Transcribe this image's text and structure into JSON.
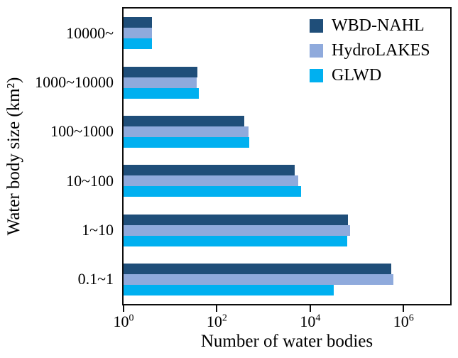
{
  "chart_data": {
    "type": "bar",
    "orientation": "horizontal",
    "x_scale": "log",
    "title": "",
    "xlabel": "Number of water bodies",
    "ylabel": "Water body size (km²)",
    "xlim": [
      1,
      10000000
    ],
    "grid": false,
    "x_ticks": {
      "base": 10,
      "exponents": [
        0,
        2,
        4,
        6
      ],
      "labels": [
        "10^0",
        "10^2",
        "10^4",
        "10^6"
      ]
    },
    "categories_top_to_bottom": [
      "10000~",
      "1000~10000",
      "100~1000",
      "10~100",
      "1~10",
      "0.1~1"
    ],
    "series": [
      {
        "name": "WBD-NAHL",
        "color": "#1F4E79",
        "values_top_to_bottom": [
          4,
          38,
          390,
          4600,
          64000,
          550000
        ]
      },
      {
        "name": "HydroLAKES",
        "color": "#8FAADC",
        "values_top_to_bottom": [
          4,
          37,
          470,
          5500,
          71000,
          600000
        ]
      },
      {
        "name": "GLWD",
        "color": "#00B0F0",
        "values_top_to_bottom": [
          4,
          41,
          500,
          6300,
          63000,
          32000
        ]
      }
    ],
    "legend": {
      "position": "upper-right",
      "entries": [
        "WBD-NAHL",
        "HydroLAKES",
        "GLWD"
      ]
    }
  }
}
